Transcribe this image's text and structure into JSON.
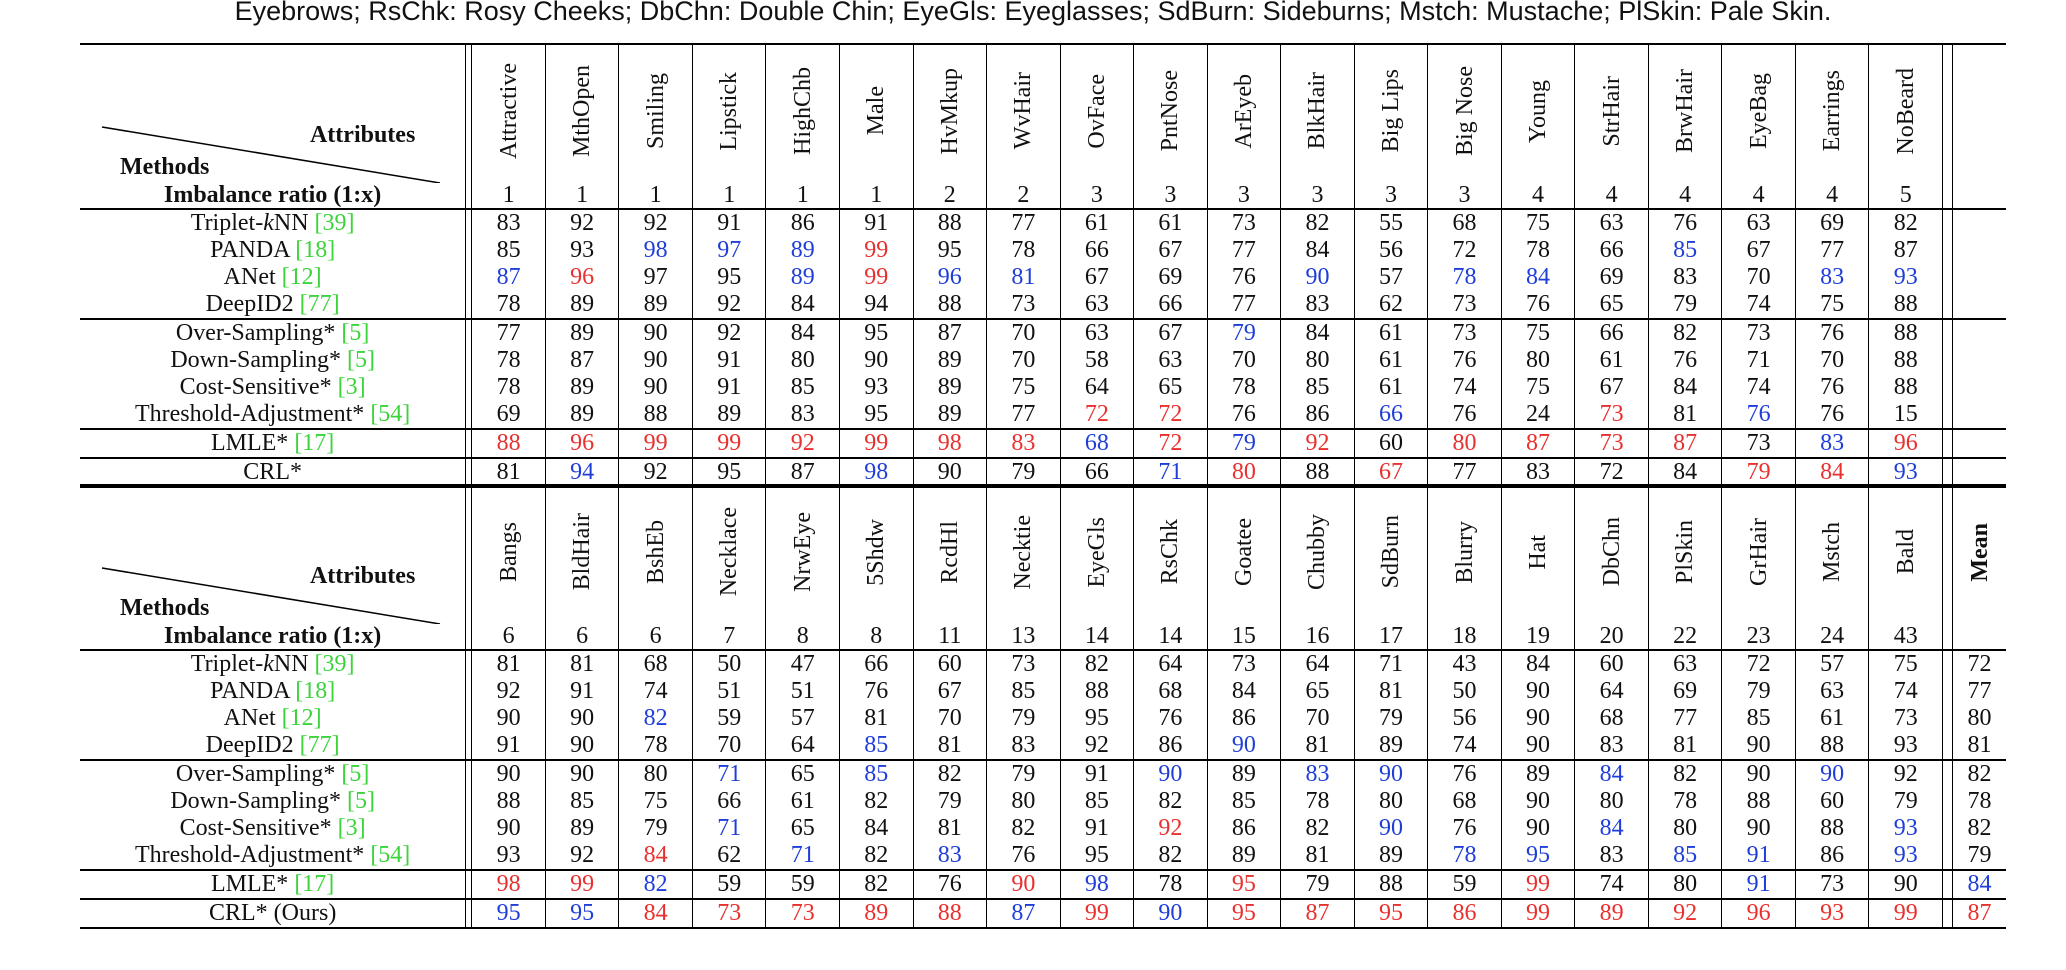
{
  "caption": "Eyebrows; RsChk: Rosy Cheeks; DbChn: Double Chin; EyeGls: Eyeglasses; SdBurn: Sideburns; Mstch: Mustache; PlSkin: Pale Skin.",
  "header_labels": {
    "attributes": "Attributes",
    "methods": "Methods",
    "ratio": "Imbalance ratio (1:x)",
    "mean": "Mean"
  },
  "colors": {
    "red": "#e8302e",
    "blue": "#1f3ed9",
    "ref": "#3bd43b"
  },
  "methods": [
    {
      "name": "Triplet-",
      "italic": "k",
      "tail": "NN ",
      "ref": "[39]"
    },
    {
      "name": "PANDA ",
      "ref": "[18]"
    },
    {
      "name": "ANet ",
      "ref": "[12]"
    },
    {
      "name": "DeepID2 ",
      "ref": "[77]"
    },
    {
      "name": "Over-Sampling* ",
      "ref": "[5]"
    },
    {
      "name": "Down-Sampling* ",
      "ref": "[5]"
    },
    {
      "name": "Cost-Sensitive* ",
      "ref": "[3]"
    },
    {
      "name": "Threshold-Adjustment* ",
      "ref": "[54]"
    },
    {
      "name": "LMLE* ",
      "ref": "[17]"
    },
    {
      "name": "CRL*",
      "ref": "",
      "bold": true
    }
  ],
  "methods_bottom_last": "CRL* (Ours)",
  "group_breaks": [
    4,
    8,
    9
  ],
  "table_top": {
    "attributes": [
      "Attractive",
      "MthOpen",
      "Smiling",
      "Lipstick",
      "HighChb",
      "Male",
      "HvMkup",
      "WvHair",
      "OvFace",
      "PntNose",
      "ArEyeb",
      "BlkHair",
      "Big Lips",
      "Big Nose",
      "Young",
      "StrHair",
      "BrwHair",
      "EyeBag",
      "Earrings",
      "NoBeard"
    ],
    "ratio": [
      "1",
      "1",
      "1",
      "1",
      "1",
      "1",
      "2",
      "2",
      "3",
      "3",
      "3",
      "3",
      "3",
      "3",
      "4",
      "4",
      "4",
      "4",
      "4",
      "5"
    ],
    "rows": [
      [
        "83",
        "92",
        "92",
        "91",
        "86",
        "91",
        "88",
        "77",
        "61",
        "61",
        "73",
        "82",
        "55",
        "68",
        "75",
        "63",
        "76",
        "63",
        "69",
        "82"
      ],
      [
        "85",
        "93",
        "98",
        "97",
        "89",
        "99",
        "95",
        "78",
        "66",
        "67",
        "77",
        "84",
        "56",
        "72",
        "78",
        "66",
        "85",
        "67",
        "77",
        "87"
      ],
      [
        "87",
        "96",
        "97",
        "95",
        "89",
        "99",
        "96",
        "81",
        "67",
        "69",
        "76",
        "90",
        "57",
        "78",
        "84",
        "69",
        "83",
        "70",
        "83",
        "93"
      ],
      [
        "78",
        "89",
        "89",
        "92",
        "84",
        "94",
        "88",
        "73",
        "63",
        "66",
        "77",
        "83",
        "62",
        "73",
        "76",
        "65",
        "79",
        "74",
        "75",
        "88"
      ],
      [
        "77",
        "89",
        "90",
        "92",
        "84",
        "95",
        "87",
        "70",
        "63",
        "67",
        "79",
        "84",
        "61",
        "73",
        "75",
        "66",
        "82",
        "73",
        "76",
        "88"
      ],
      [
        "78",
        "87",
        "90",
        "91",
        "80",
        "90",
        "89",
        "70",
        "58",
        "63",
        "70",
        "80",
        "61",
        "76",
        "80",
        "61",
        "76",
        "71",
        "70",
        "88"
      ],
      [
        "78",
        "89",
        "90",
        "91",
        "85",
        "93",
        "89",
        "75",
        "64",
        "65",
        "78",
        "85",
        "61",
        "74",
        "75",
        "67",
        "84",
        "74",
        "76",
        "88"
      ],
      [
        "69",
        "89",
        "88",
        "89",
        "83",
        "95",
        "89",
        "77",
        "72",
        "72",
        "76",
        "86",
        "66",
        "76",
        "24",
        "73",
        "81",
        "76",
        "76",
        "15"
      ],
      [
        "88",
        "96",
        "99",
        "99",
        "92",
        "99",
        "98",
        "83",
        "68",
        "72",
        "79",
        "92",
        "60",
        "80",
        "87",
        "73",
        "87",
        "73",
        "83",
        "96"
      ],
      [
        "81",
        "94",
        "92",
        "95",
        "87",
        "98",
        "90",
        "79",
        "66",
        "71",
        "80",
        "88",
        "67",
        "77",
        "83",
        "72",
        "84",
        "79",
        "84",
        "93"
      ]
    ],
    "styles": [
      [
        "",
        "",
        "",
        "",
        "",
        "",
        "",
        "",
        "",
        "",
        "",
        "",
        "",
        "",
        "",
        "",
        "",
        "",
        "",
        ""
      ],
      [
        "",
        "",
        "b",
        "b",
        "b",
        "r",
        "",
        "",
        "",
        "",
        "",
        "",
        "",
        "",
        "",
        "",
        "b",
        "",
        "",
        ""
      ],
      [
        "b",
        "r",
        "",
        "",
        "b",
        "r",
        "b",
        "b",
        "",
        "",
        "",
        "b",
        "",
        "b",
        "b",
        "",
        "",
        "",
        "b",
        "b"
      ],
      [
        "",
        "",
        "",
        "",
        "",
        "",
        "",
        "",
        "",
        "",
        "",
        "",
        "",
        "",
        "",
        "",
        "",
        "",
        "",
        ""
      ],
      [
        "",
        "",
        "",
        "",
        "",
        "",
        "",
        "",
        "",
        "",
        "b",
        "",
        "",
        "",
        "",
        "",
        "",
        "",
        "",
        ""
      ],
      [
        "",
        "",
        "",
        "",
        "",
        "",
        "",
        "",
        "",
        "",
        "",
        "",
        "",
        "",
        "",
        "",
        "",
        "",
        "",
        ""
      ],
      [
        "",
        "",
        "",
        "",
        "",
        "",
        "",
        "",
        "",
        "",
        "",
        "",
        "",
        "",
        "",
        "",
        "",
        "",
        "",
        ""
      ],
      [
        "",
        "",
        "",
        "",
        "",
        "",
        "",
        "",
        "r",
        "r",
        "",
        "",
        "b",
        "",
        "",
        "r",
        "",
        "b",
        "",
        ""
      ],
      [
        "r",
        "r",
        "r",
        "r",
        "r",
        "r",
        "r",
        "r",
        "b",
        "r",
        "b",
        "r",
        "",
        "r",
        "r",
        "r",
        "r",
        "",
        "b",
        "r"
      ],
      [
        "",
        "b",
        "",
        "",
        "",
        "b",
        "",
        "",
        "",
        "b",
        "r",
        "",
        "r",
        "",
        "",
        "",
        "",
        "r",
        "r",
        "b"
      ]
    ]
  },
  "table_bottom": {
    "attributes": [
      "Bangs",
      "BldHair",
      "BshEb",
      "Necklace",
      "NrwEye",
      "5Shdw",
      "RcdHl",
      "Necktie",
      "EyeGls",
      "RsChk",
      "Goatee",
      "Chubby",
      "SdBurn",
      "Blurry",
      "Hat",
      "DbChn",
      "PlSkin",
      "GrHair",
      "Mstch",
      "Bald"
    ],
    "ratio": [
      "6",
      "6",
      "6",
      "7",
      "8",
      "8",
      "11",
      "13",
      "14",
      "14",
      "15",
      "16",
      "17",
      "18",
      "19",
      "20",
      "22",
      "23",
      "24",
      "43"
    ],
    "rows": [
      [
        "81",
        "81",
        "68",
        "50",
        "47",
        "66",
        "60",
        "73",
        "82",
        "64",
        "73",
        "64",
        "71",
        "43",
        "84",
        "60",
        "63",
        "72",
        "57",
        "75"
      ],
      [
        "92",
        "91",
        "74",
        "51",
        "51",
        "76",
        "67",
        "85",
        "88",
        "68",
        "84",
        "65",
        "81",
        "50",
        "90",
        "64",
        "69",
        "79",
        "63",
        "74"
      ],
      [
        "90",
        "90",
        "82",
        "59",
        "57",
        "81",
        "70",
        "79",
        "95",
        "76",
        "86",
        "70",
        "79",
        "56",
        "90",
        "68",
        "77",
        "85",
        "61",
        "73"
      ],
      [
        "91",
        "90",
        "78",
        "70",
        "64",
        "85",
        "81",
        "83",
        "92",
        "86",
        "90",
        "81",
        "89",
        "74",
        "90",
        "83",
        "81",
        "90",
        "88",
        "93"
      ],
      [
        "90",
        "90",
        "80",
        "71",
        "65",
        "85",
        "82",
        "79",
        "91",
        "90",
        "89",
        "83",
        "90",
        "76",
        "89",
        "84",
        "82",
        "90",
        "90",
        "92"
      ],
      [
        "88",
        "85",
        "75",
        "66",
        "61",
        "82",
        "79",
        "80",
        "85",
        "82",
        "85",
        "78",
        "80",
        "68",
        "90",
        "80",
        "78",
        "88",
        "60",
        "79"
      ],
      [
        "90",
        "89",
        "79",
        "71",
        "65",
        "84",
        "81",
        "82",
        "91",
        "92",
        "86",
        "82",
        "90",
        "76",
        "90",
        "84",
        "80",
        "90",
        "88",
        "93"
      ],
      [
        "93",
        "92",
        "84",
        "62",
        "71",
        "82",
        "83",
        "76",
        "95",
        "82",
        "89",
        "81",
        "89",
        "78",
        "95",
        "83",
        "85",
        "91",
        "86",
        "93"
      ],
      [
        "98",
        "99",
        "82",
        "59",
        "59",
        "82",
        "76",
        "90",
        "98",
        "78",
        "95",
        "79",
        "88",
        "59",
        "99",
        "74",
        "80",
        "91",
        "73",
        "90"
      ],
      [
        "95",
        "95",
        "84",
        "73",
        "73",
        "89",
        "88",
        "87",
        "99",
        "90",
        "95",
        "87",
        "95",
        "86",
        "99",
        "89",
        "92",
        "96",
        "93",
        "99"
      ]
    ],
    "styles": [
      [
        "",
        "",
        "",
        "",
        "",
        "",
        "",
        "",
        "",
        "",
        "",
        "",
        "",
        "",
        "",
        "",
        "",
        "",
        "",
        ""
      ],
      [
        "",
        "",
        "",
        "",
        "",
        "",
        "",
        "",
        "",
        "",
        "",
        "",
        "",
        "",
        "",
        "",
        "",
        "",
        "",
        ""
      ],
      [
        "",
        "",
        "b",
        "",
        "",
        "",
        "",
        "",
        "",
        "",
        "",
        "",
        "",
        "",
        "",
        "",
        "",
        "",
        "",
        ""
      ],
      [
        "",
        "",
        "",
        "",
        "",
        "b",
        "",
        "",
        "",
        "",
        "b",
        "",
        "",
        "",
        "",
        "",
        "",
        "",
        "",
        ""
      ],
      [
        "",
        "",
        "",
        "b",
        "",
        "b",
        "",
        "",
        "",
        "b",
        "",
        "b",
        "b",
        "",
        "",
        "b",
        "",
        "",
        "b",
        ""
      ],
      [
        "",
        "",
        "",
        "",
        "",
        "",
        "",
        "",
        "",
        "",
        "",
        "",
        "",
        "",
        "",
        "",
        "",
        "",
        "",
        ""
      ],
      [
        "",
        "",
        "",
        "b",
        "",
        "",
        "",
        "",
        "",
        "r",
        "",
        "",
        "b",
        "",
        "",
        "b",
        "",
        "",
        "",
        "b"
      ],
      [
        "",
        "",
        "r",
        "",
        "b",
        "",
        "b",
        "",
        "",
        "",
        "",
        "",
        "",
        "b",
        "b",
        "",
        "b",
        "b",
        "",
        "b"
      ],
      [
        "r",
        "r",
        "b",
        "",
        "",
        "",
        "",
        "r",
        "b",
        "",
        "r",
        "",
        "",
        "",
        "r",
        "",
        "",
        "b",
        "",
        ""
      ],
      [
        "b",
        "b",
        "r",
        "r",
        "r",
        "r",
        "r",
        "b",
        "r",
        "b",
        "r",
        "r",
        "r",
        "r",
        "r",
        "r",
        "r",
        "r",
        "r",
        "r"
      ]
    ],
    "mean": [
      "72",
      "77",
      "80",
      "81",
      "82",
      "78",
      "82",
      "79",
      "84",
      "87"
    ],
    "mean_styles": [
      "bold",
      "bold",
      "bold",
      "bold",
      "bold",
      "bold",
      "bold",
      "bold",
      "b",
      "r"
    ]
  }
}
